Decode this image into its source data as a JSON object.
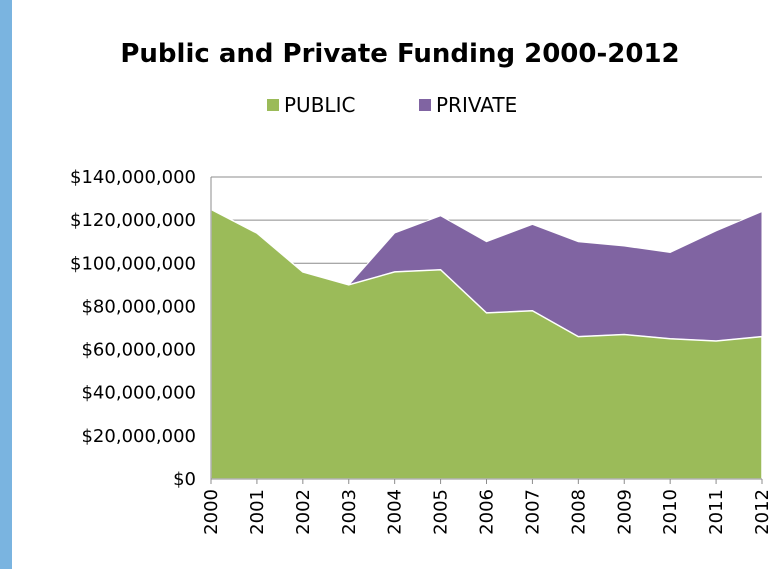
{
  "chart_data": {
    "type": "area",
    "stacked": true,
    "title": "Public and Private Funding 2000-2012",
    "categories": [
      "2000",
      "2001",
      "2002",
      "2003",
      "2004",
      "2005",
      "2006",
      "2007",
      "2008",
      "2009",
      "2010",
      "2011",
      "2012"
    ],
    "series": [
      {
        "name": "PUBLIC",
        "color": "#9bbb59",
        "values": [
          125000000,
          114000000,
          96000000,
          90000000,
          96000000,
          97000000,
          77000000,
          78000000,
          66000000,
          67000000,
          65000000,
          64000000,
          66000000
        ]
      },
      {
        "name": "PRIVATE",
        "color": "#8064a2",
        "values": [
          0,
          0,
          0,
          0,
          18000000,
          25000000,
          33000000,
          40000000,
          44000000,
          41000000,
          40000000,
          51000000,
          58000000
        ]
      }
    ],
    "ylim": [
      0,
      140000000
    ],
    "yticks": [
      "$0",
      "$20,000,000",
      "$40,000,000",
      "$60,000,000",
      "$80,000,000",
      "$100,000,000",
      "$120,000,000",
      "$140,000,000"
    ],
    "grid": true,
    "legend_position": "top"
  }
}
